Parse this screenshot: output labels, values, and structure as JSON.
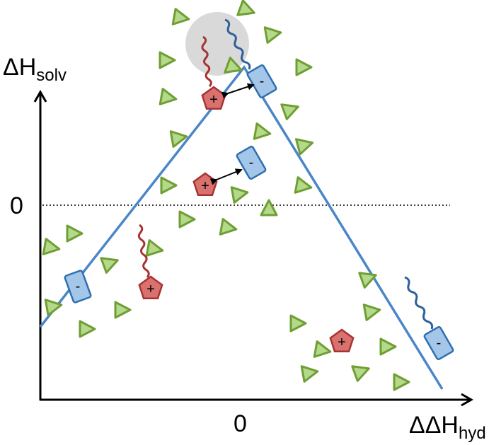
{
  "y_axis": {
    "label": "ΔH",
    "label_subscript": "solv",
    "zero": "0"
  },
  "x_axis": {
    "label": "ΔΔH",
    "label_subscript": "hyd",
    "zero": "0"
  },
  "cation_sign": "+",
  "anion_sign": "-"
}
